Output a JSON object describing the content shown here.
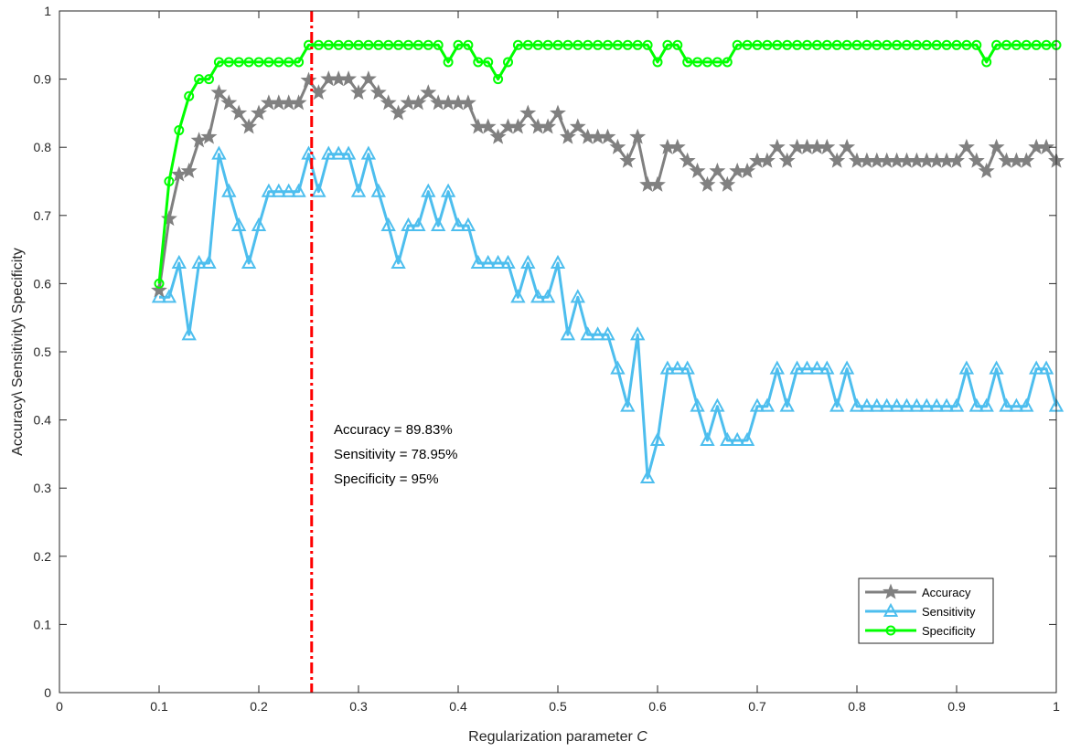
{
  "chart_data": {
    "type": "line",
    "title": "",
    "xlabel": "Regularization parameter",
    "xlabel_italic": "C",
    "ylabel": "Accuracy\\ Sensitivity\\ Specificity",
    "xlim": [
      0,
      1
    ],
    "ylim": [
      0,
      1
    ],
    "x_ticks": [
      "0",
      "0.1",
      "0.2",
      "0.3",
      "0.4",
      "0.5",
      "0.6",
      "0.7",
      "0.8",
      "0.9",
      "1"
    ],
    "y_ticks": [
      "0",
      "0.1",
      "0.2",
      "0.3",
      "0.4",
      "0.5",
      "0.6",
      "0.7",
      "0.8",
      "0.9",
      "1"
    ],
    "grid": false,
    "legend_position": "bottom-right",
    "vline": {
      "x": 0.253,
      "color": "#ff0000",
      "style": "dash-dot"
    },
    "annotations": [
      "Accuracy = 89.83%",
      "Sensitivity = 78.95%",
      "Specificity = 95%"
    ],
    "x": [
      0.1,
      0.11,
      0.12,
      0.13,
      0.14,
      0.15,
      0.16,
      0.17,
      0.18,
      0.19,
      0.2,
      0.21,
      0.22,
      0.23,
      0.24,
      0.25,
      0.26,
      0.27,
      0.28,
      0.29,
      0.3,
      0.31,
      0.32,
      0.33,
      0.34,
      0.35,
      0.36,
      0.37,
      0.38,
      0.39,
      0.4,
      0.41,
      0.42,
      0.43,
      0.44,
      0.45,
      0.46,
      0.47,
      0.48,
      0.49,
      0.5,
      0.51,
      0.52,
      0.53,
      0.54,
      0.55,
      0.56,
      0.57,
      0.58,
      0.59,
      0.6,
      0.61,
      0.62,
      0.63,
      0.64,
      0.65,
      0.66,
      0.67,
      0.68,
      0.69,
      0.7,
      0.71,
      0.72,
      0.73,
      0.74,
      0.75,
      0.76,
      0.77,
      0.78,
      0.79,
      0.8,
      0.81,
      0.82,
      0.83,
      0.84,
      0.85,
      0.86,
      0.87,
      0.88,
      0.89,
      0.9,
      0.91,
      0.92,
      0.93,
      0.94,
      0.95,
      0.96,
      0.97,
      0.98,
      0.99,
      1.0
    ],
    "series": [
      {
        "name": "Accuracy",
        "color": "#808080",
        "marker": "star",
        "values": [
          0.59,
          0.695,
          0.76,
          0.765,
          0.81,
          0.815,
          0.88,
          0.865,
          0.85,
          0.83,
          0.85,
          0.865,
          0.865,
          0.865,
          0.865,
          0.898,
          0.88,
          0.9,
          0.9,
          0.9,
          0.88,
          0.9,
          0.88,
          0.865,
          0.85,
          0.865,
          0.865,
          0.88,
          0.865,
          0.865,
          0.865,
          0.865,
          0.83,
          0.83,
          0.815,
          0.83,
          0.83,
          0.85,
          0.83,
          0.83,
          0.85,
          0.815,
          0.83,
          0.815,
          0.815,
          0.815,
          0.8,
          0.78,
          0.815,
          0.745,
          0.745,
          0.8,
          0.8,
          0.78,
          0.765,
          0.745,
          0.765,
          0.745,
          0.765,
          0.765,
          0.78,
          0.78,
          0.8,
          0.78,
          0.8,
          0.8,
          0.8,
          0.8,
          0.78,
          0.8,
          0.78,
          0.78,
          0.78,
          0.78,
          0.78,
          0.78,
          0.78,
          0.78,
          0.78,
          0.78,
          0.78,
          0.8,
          0.78,
          0.765,
          0.8,
          0.78,
          0.78,
          0.78,
          0.8,
          0.8,
          0.78
        ]
      },
      {
        "name": "Sensitivity",
        "color": "#4dbeee",
        "marker": "triangle",
        "values": [
          0.58,
          0.58,
          0.63,
          0.525,
          0.63,
          0.63,
          0.79,
          0.735,
          0.685,
          0.63,
          0.685,
          0.735,
          0.735,
          0.735,
          0.735,
          0.79,
          0.735,
          0.79,
          0.79,
          0.79,
          0.735,
          0.79,
          0.735,
          0.685,
          0.63,
          0.685,
          0.685,
          0.735,
          0.685,
          0.735,
          0.685,
          0.685,
          0.63,
          0.63,
          0.63,
          0.63,
          0.58,
          0.63,
          0.58,
          0.58,
          0.63,
          0.525,
          0.58,
          0.525,
          0.525,
          0.525,
          0.475,
          0.42,
          0.525,
          0.315,
          0.37,
          0.475,
          0.475,
          0.475,
          0.42,
          0.37,
          0.42,
          0.37,
          0.37,
          0.37,
          0.42,
          0.42,
          0.475,
          0.42,
          0.475,
          0.475,
          0.475,
          0.475,
          0.42,
          0.475,
          0.42,
          0.42,
          0.42,
          0.42,
          0.42,
          0.42,
          0.42,
          0.42,
          0.42,
          0.42,
          0.42,
          0.475,
          0.42,
          0.42,
          0.475,
          0.42,
          0.42,
          0.42,
          0.475,
          0.475,
          0.42
        ]
      },
      {
        "name": "Specificity",
        "color": "#00ff00",
        "marker": "circle",
        "values": [
          0.6,
          0.75,
          0.825,
          0.875,
          0.9,
          0.9,
          0.925,
          0.925,
          0.925,
          0.925,
          0.925,
          0.925,
          0.925,
          0.925,
          0.925,
          0.95,
          0.95,
          0.95,
          0.95,
          0.95,
          0.95,
          0.95,
          0.95,
          0.95,
          0.95,
          0.95,
          0.95,
          0.95,
          0.95,
          0.925,
          0.95,
          0.95,
          0.925,
          0.925,
          0.9,
          0.925,
          0.95,
          0.95,
          0.95,
          0.95,
          0.95,
          0.95,
          0.95,
          0.95,
          0.95,
          0.95,
          0.95,
          0.95,
          0.95,
          0.95,
          0.925,
          0.95,
          0.95,
          0.925,
          0.925,
          0.925,
          0.925,
          0.925,
          0.95,
          0.95,
          0.95,
          0.95,
          0.95,
          0.95,
          0.95,
          0.95,
          0.95,
          0.95,
          0.95,
          0.95,
          0.95,
          0.95,
          0.95,
          0.95,
          0.95,
          0.95,
          0.95,
          0.95,
          0.95,
          0.95,
          0.95,
          0.95,
          0.95,
          0.925,
          0.95,
          0.95,
          0.95,
          0.95,
          0.95,
          0.95,
          0.95
        ]
      }
    ]
  }
}
